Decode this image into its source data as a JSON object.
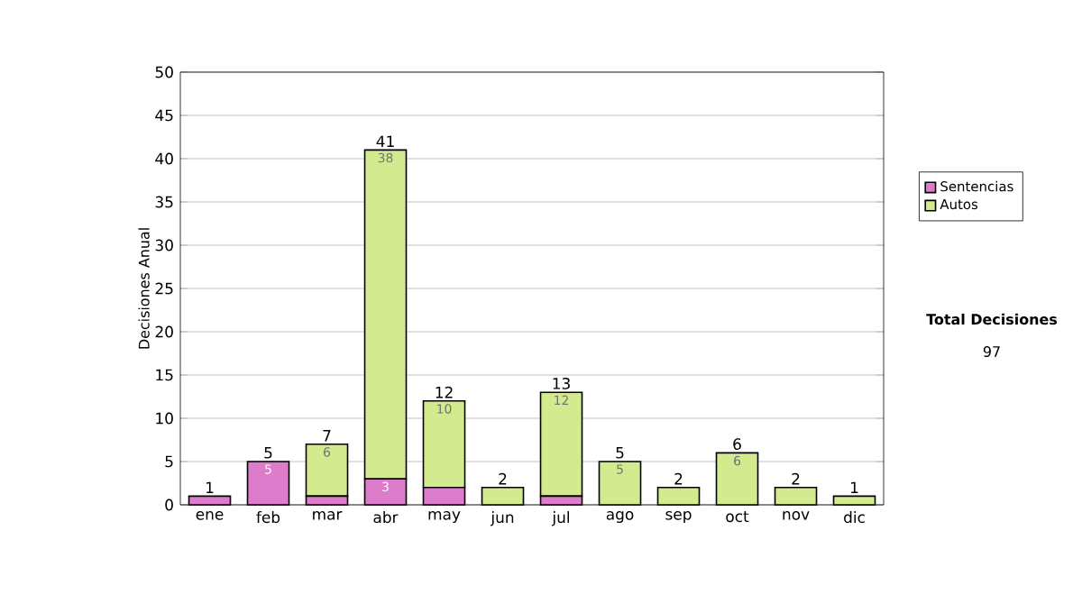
{
  "chart_data": {
    "type": "bar",
    "stacked": true,
    "ylabel": "Decisiones Anual",
    "categories": [
      "ene",
      "feb",
      "mar",
      "abr",
      "may",
      "jun",
      "jul",
      "ago",
      "sep",
      "oct",
      "nov",
      "dic"
    ],
    "series": [
      {
        "name": "Sentencias",
        "color": "#dd7ccb",
        "values": [
          1,
          5,
          1,
          3,
          2,
          0,
          1,
          0,
          0,
          0,
          0,
          0
        ],
        "value_labels": [
          null,
          "5",
          null,
          "3",
          null,
          null,
          null,
          null,
          null,
          null,
          null,
          null
        ]
      },
      {
        "name": "Autos",
        "color": "#d4ea8f",
        "values": [
          0,
          0,
          6,
          38,
          10,
          2,
          12,
          5,
          2,
          6,
          2,
          1
        ],
        "value_labels": [
          null,
          null,
          "6",
          "38",
          "10",
          null,
          "12",
          "5",
          null,
          "6",
          null,
          null
        ]
      }
    ],
    "totals": [
      "1",
      "5",
      "7",
      "41",
      "12",
      "2",
      "13",
      "5",
      "2",
      "6",
      "2",
      "1"
    ],
    "ylim": [
      0,
      50
    ],
    "yticks": [
      0,
      5,
      10,
      15,
      20,
      25,
      30,
      35,
      40,
      45,
      50
    ],
    "grid": "y",
    "legend": "right",
    "annotations": [
      "Total Decisiones",
      "97"
    ]
  }
}
